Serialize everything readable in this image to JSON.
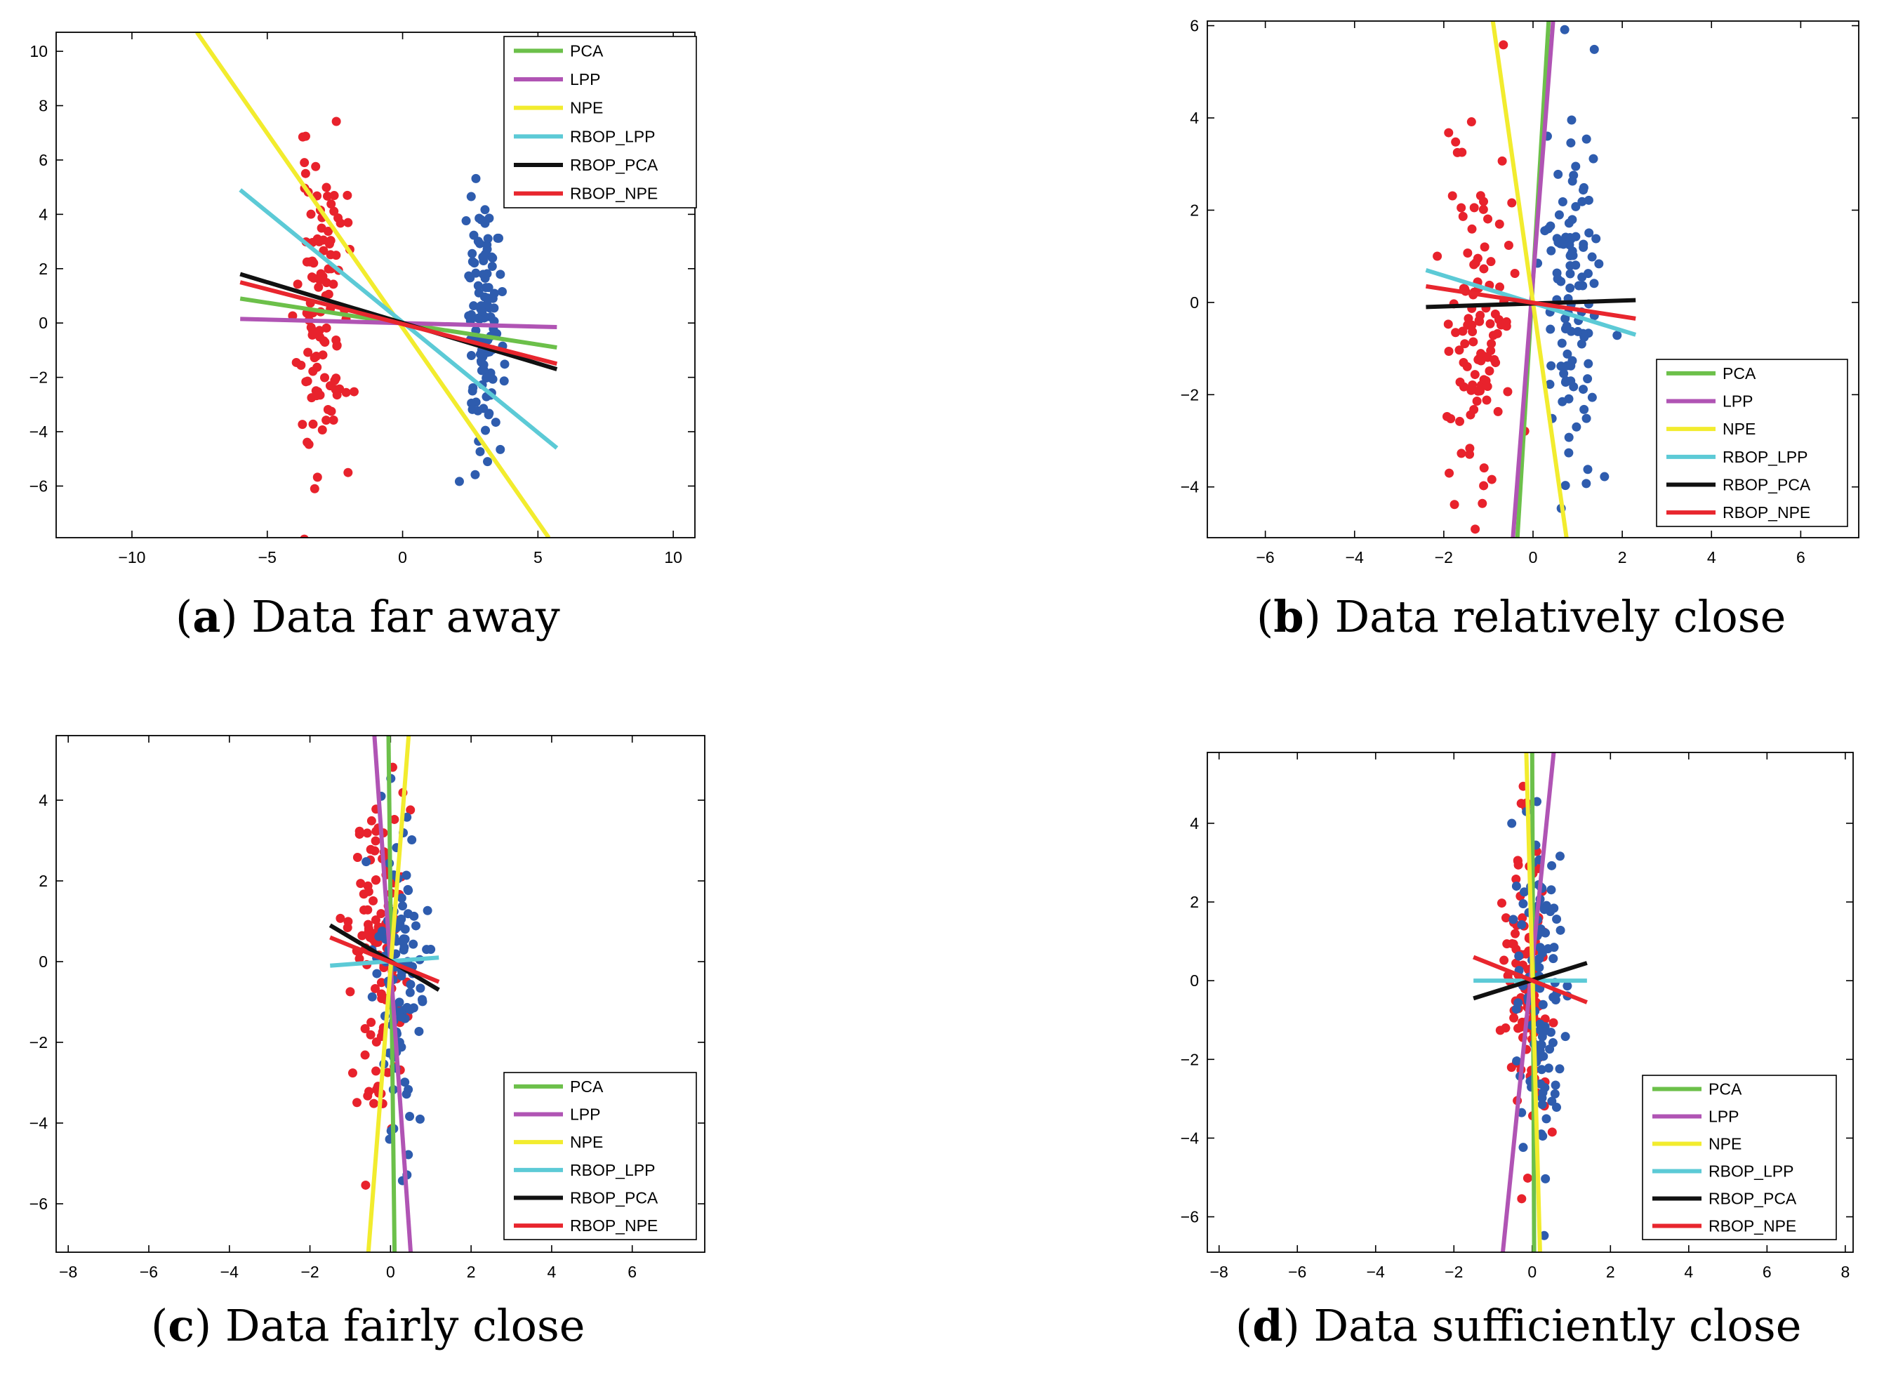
{
  "colors": {
    "PCA": "#6cc04a",
    "LPP": "#b054b4",
    "NPE": "#f2ec2e",
    "RBOP_LPP": "#5ccad6",
    "RBOP_PCA": "#111111",
    "RBOP_NPE": "#e8262e",
    "class1": "#e8222c",
    "class2": "#2e5cae"
  },
  "chart_data": [
    {
      "id": "a",
      "type": "scatter",
      "caption_letter": "a",
      "caption_text": ") Data far away",
      "caption_open": "(",
      "xlim": [
        -12.8,
        10.8
      ],
      "ylim": [
        -7.9,
        10.7
      ],
      "xticks": [
        -10,
        -5,
        0,
        5,
        10
      ],
      "yticks": [
        -6,
        -4,
        -2,
        0,
        2,
        4,
        6,
        8,
        10
      ],
      "legend": [
        "PCA",
        "LPP",
        "NPE",
        "RBOP_LPP",
        "RBOP_PCA",
        "RBOP_NPE"
      ],
      "legend_placement": "top-right",
      "lines": [
        {
          "name": "PCA",
          "x": [
            -6,
            5.7
          ],
          "y": [
            0.9,
            -0.9
          ]
        },
        {
          "name": "LPP",
          "x": [
            -6,
            5.7
          ],
          "y": [
            0.15,
            -0.15
          ]
        },
        {
          "name": "NPE",
          "x": [
            -7.6,
            5.4
          ],
          "y": [
            10.7,
            -7.9
          ]
        },
        {
          "name": "RBOP_LPP",
          "x": [
            -6,
            5.7
          ],
          "y": [
            4.9,
            -4.6
          ]
        },
        {
          "name": "RBOP_PCA",
          "x": [
            -6,
            5.7
          ],
          "y": [
            1.8,
            -1.7
          ]
        },
        {
          "name": "RBOP_NPE",
          "x": [
            -6,
            5.7
          ],
          "y": [
            1.5,
            -1.5
          ]
        }
      ],
      "clusters": [
        {
          "class": "class1",
          "cx": -3.0,
          "sx": 0.45,
          "cy": 0.3,
          "sy": 2.9,
          "n": 110,
          "seed": 11
        },
        {
          "class": "class2",
          "cx": 3.0,
          "sx": 0.35,
          "cy": 0.0,
          "sy": 2.6,
          "n": 110,
          "seed": 23
        }
      ]
    },
    {
      "id": "b",
      "type": "scatter",
      "caption_letter": "b",
      "caption_text": ") Data relatively close",
      "caption_open": "(",
      "xlim": [
        -7.3,
        7.3
      ],
      "ylim": [
        -5.1,
        6.1
      ],
      "xticks": [
        -6,
        -4,
        -2,
        0,
        2,
        4,
        6
      ],
      "yticks": [
        -4,
        -2,
        0,
        2,
        4,
        6
      ],
      "legend": [
        "PCA",
        "LPP",
        "NPE",
        "RBOP_LPP",
        "RBOP_PCA",
        "RBOP_NPE"
      ],
      "legend_placement": "bottom-right",
      "lines": [
        {
          "name": "PCA",
          "x": [
            -0.35,
            0.35
          ],
          "y": [
            -5.1,
            6.1
          ]
        },
        {
          "name": "LPP",
          "x": [
            -0.45,
            0.45
          ],
          "y": [
            -5.1,
            6.1
          ]
        },
        {
          "name": "NPE",
          "x": [
            -0.9,
            0.75
          ],
          "y": [
            6.1,
            -5.1
          ]
        },
        {
          "name": "RBOP_LPP",
          "x": [
            -2.4,
            2.3
          ],
          "y": [
            0.7,
            -0.7
          ]
        },
        {
          "name": "RBOP_PCA",
          "x": [
            -2.4,
            2.3
          ],
          "y": [
            -0.1,
            0.05
          ]
        },
        {
          "name": "RBOP_NPE",
          "x": [
            -2.4,
            2.3
          ],
          "y": [
            0.35,
            -0.35
          ]
        }
      ],
      "clusters": [
        {
          "class": "class1",
          "cx": -1.2,
          "sx": 0.35,
          "cy": -0.3,
          "sy": 2.1,
          "n": 110,
          "seed": 37
        },
        {
          "class": "class2",
          "cx": 0.9,
          "sx": 0.3,
          "cy": 0.3,
          "sy": 2.2,
          "n": 110,
          "seed": 41
        }
      ]
    },
    {
      "id": "c",
      "type": "scatter",
      "caption_letter": "c",
      "caption_text": ") Data fairly close",
      "caption_open": "(",
      "xlim": [
        -8.3,
        7.8
      ],
      "ylim": [
        -7.2,
        5.6
      ],
      "xticks": [
        -8,
        -6,
        -4,
        -2,
        0,
        2,
        4,
        6
      ],
      "yticks": [
        -6,
        -4,
        -2,
        0,
        2,
        4
      ],
      "legend": [
        "PCA",
        "LPP",
        "NPE",
        "RBOP_LPP",
        "RBOP_PCA",
        "RBOP_NPE"
      ],
      "legend_placement": "bottom-right",
      "lines": [
        {
          "name": "PCA",
          "x": [
            -0.05,
            0.1
          ],
          "y": [
            5.6,
            -7.2
          ]
        },
        {
          "name": "LPP",
          "x": [
            -0.4,
            0.5
          ],
          "y": [
            5.6,
            -7.2
          ]
        },
        {
          "name": "NPE",
          "x": [
            0.45,
            -0.55
          ],
          "y": [
            5.6,
            -7.2
          ]
        },
        {
          "name": "RBOP_LPP",
          "x": [
            -1.5,
            1.2
          ],
          "y": [
            -0.1,
            0.1
          ]
        },
        {
          "name": "RBOP_PCA",
          "x": [
            -1.5,
            1.2
          ],
          "y": [
            0.9,
            -0.7
          ]
        },
        {
          "name": "RBOP_NPE",
          "x": [
            -1.5,
            1.2
          ],
          "y": [
            0.6,
            -0.5
          ]
        }
      ],
      "clusters": [
        {
          "class": "class1",
          "cx": -0.3,
          "sx": 0.35,
          "cy": 0.2,
          "sy": 2.0,
          "n": 110,
          "seed": 53
        },
        {
          "class": "class2",
          "cx": 0.2,
          "sx": 0.3,
          "cy": -0.3,
          "sy": 1.9,
          "n": 110,
          "seed": 67
        }
      ]
    },
    {
      "id": "d",
      "type": "scatter",
      "caption_letter": "d",
      "caption_text": ") Data sufficiently close",
      "caption_open": "(",
      "xlim": [
        -8.3,
        8.2
      ],
      "ylim": [
        -6.9,
        5.8
      ],
      "xticks": [
        -8,
        -6,
        -4,
        -2,
        0,
        2,
        4,
        6,
        8
      ],
      "yticks": [
        -6,
        -4,
        -2,
        0,
        2,
        4
      ],
      "legend": [
        "PCA",
        "LPP",
        "NPE",
        "RBOP_LPP",
        "RBOP_PCA",
        "RBOP_NPE"
      ],
      "legend_placement": "bottom-right",
      "lines": [
        {
          "name": "PCA",
          "x": [
            0.0,
            0.05
          ],
          "y": [
            5.8,
            -6.9
          ]
        },
        {
          "name": "LPP",
          "x": [
            0.55,
            -0.75
          ],
          "y": [
            5.8,
            -6.9
          ]
        },
        {
          "name": "NPE",
          "x": [
            -0.15,
            0.2
          ],
          "y": [
            5.8,
            -6.9
          ]
        },
        {
          "name": "RBOP_LPP",
          "x": [
            -1.5,
            1.4
          ],
          "y": [
            0.0,
            0.0
          ]
        },
        {
          "name": "RBOP_PCA",
          "x": [
            -1.5,
            1.4
          ],
          "y": [
            -0.45,
            0.45
          ]
        },
        {
          "name": "RBOP_NPE",
          "x": [
            -1.5,
            1.4
          ],
          "y": [
            0.6,
            -0.55
          ]
        }
      ],
      "clusters": [
        {
          "class": "class1",
          "cx": -0.15,
          "sx": 0.3,
          "cy": 0.2,
          "sy": 1.9,
          "n": 110,
          "seed": 71
        },
        {
          "class": "class2",
          "cx": 0.15,
          "sx": 0.3,
          "cy": -0.2,
          "sy": 2.0,
          "n": 110,
          "seed": 89
        }
      ]
    }
  ]
}
